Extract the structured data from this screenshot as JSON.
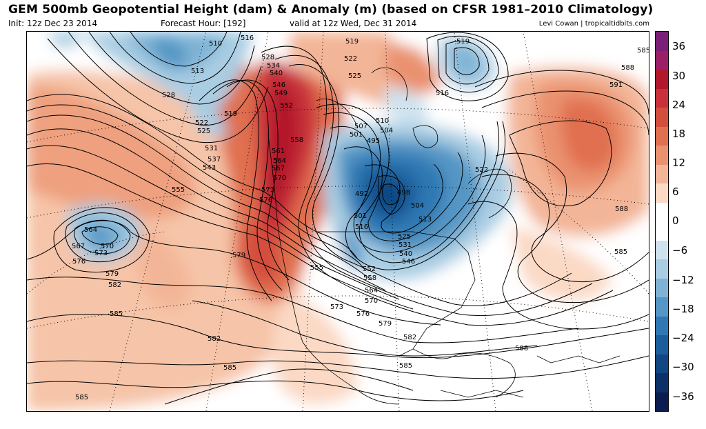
{
  "header": {
    "title": "GEM 500mb Geopotential Height (dam) & Anomaly (m) (based on CFSR 1981–2010 Climatology)",
    "init": "Init: 12z Dec 23 2014",
    "forecast_hour": "Forecast Hour: [192]",
    "valid": "valid at 12z Wed, Dec 31 2014",
    "credit": "Levi Cowan | tropicaltidbits.com"
  },
  "colorbar": {
    "ticks": [
      "36",
      "30",
      "24",
      "18",
      "12",
      "6",
      "0",
      "−6",
      "−12",
      "−18",
      "−24",
      "−30",
      "−36"
    ],
    "colors": [
      "#7a1f78",
      "#9a1f66",
      "#b3172b",
      "#c8303a",
      "#d44e3d",
      "#e0704f",
      "#ea9270",
      "#f3b597",
      "#fbd9c5",
      "#ffffff",
      "#ffffff",
      "#cfe3ef",
      "#a9cde3",
      "#7fb3d5",
      "#5496c5",
      "#2f78b3",
      "#1b5e9b",
      "#104682",
      "#0b3168",
      "#0a1d4e"
    ]
  },
  "map": {
    "height_labels": [
      {
        "text": "510"
      },
      {
        "text": "516"
      },
      {
        "text": "519"
      },
      {
        "text": "519"
      },
      {
        "text": "585"
      },
      {
        "text": "513"
      },
      {
        "text": "528"
      },
      {
        "text": "534"
      },
      {
        "text": "540"
      },
      {
        "text": "522"
      },
      {
        "text": "588"
      },
      {
        "text": "528"
      },
      {
        "text": "546"
      },
      {
        "text": "549"
      },
      {
        "text": "525"
      },
      {
        "text": "591"
      },
      {
        "text": "516"
      },
      {
        "text": "552"
      },
      {
        "text": "510"
      },
      {
        "text": "519"
      },
      {
        "text": "522"
      },
      {
        "text": "525"
      },
      {
        "text": "507"
      },
      {
        "text": "504"
      },
      {
        "text": "501"
      },
      {
        "text": "558"
      },
      {
        "text": "495"
      },
      {
        "text": "531"
      },
      {
        "text": "561"
      },
      {
        "text": "537"
      },
      {
        "text": "564"
      },
      {
        "text": "567"
      },
      {
        "text": "543"
      },
      {
        "text": "522"
      },
      {
        "text": "570"
      },
      {
        "text": "555"
      },
      {
        "text": "573"
      },
      {
        "text": "498"
      },
      {
        "text": "576"
      },
      {
        "text": "504"
      },
      {
        "text": "492"
      },
      {
        "text": "588"
      },
      {
        "text": "564"
      },
      {
        "text": "501"
      },
      {
        "text": "513"
      },
      {
        "text": "516"
      },
      {
        "text": "525"
      },
      {
        "text": "567"
      },
      {
        "text": "570"
      },
      {
        "text": "531"
      },
      {
        "text": "573"
      },
      {
        "text": "540"
      },
      {
        "text": "585"
      },
      {
        "text": "579"
      },
      {
        "text": "576"
      },
      {
        "text": "546"
      },
      {
        "text": "555"
      },
      {
        "text": "552"
      },
      {
        "text": "579"
      },
      {
        "text": "558"
      },
      {
        "text": "582"
      },
      {
        "text": "564"
      },
      {
        "text": "570"
      },
      {
        "text": "573"
      },
      {
        "text": "585"
      },
      {
        "text": "576"
      },
      {
        "text": "579"
      },
      {
        "text": "582"
      },
      {
        "text": "582"
      },
      {
        "text": "588"
      },
      {
        "text": "585"
      },
      {
        "text": "585"
      },
      {
        "text": "585"
      }
    ]
  }
}
